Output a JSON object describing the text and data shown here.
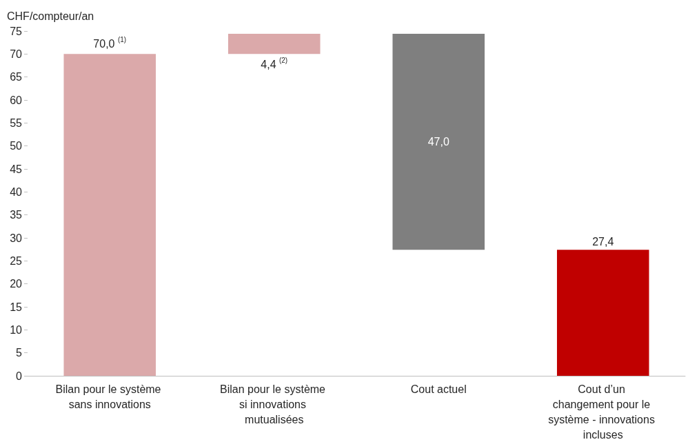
{
  "chart_data": {
    "type": "bar",
    "ylabel": "CHF/compteur/an",
    "categories": [
      "Bilan pour le système sans innovations",
      "Bilan pour le système si innovations mutualisées",
      "Cout actuel",
      "Cout d’un changement pour le système - innovations incluses"
    ],
    "values": [
      70.0,
      4.4,
      47.0,
      27.4
    ],
    "base": [
      0,
      70.0,
      27.4,
      0
    ],
    "colors": [
      "#dba9aa",
      "#dba9aa",
      "#7f7f7f",
      "#c00000"
    ],
    "value_labels": [
      "70,0 $^{(1)}$",
      "4,4 $^{(2)}$",
      "47,0",
      "27,4"
    ],
    "ylim": [
      0,
      75
    ],
    "yticks": [
      0,
      5,
      10,
      15,
      20,
      25,
      30,
      35,
      40,
      45,
      50,
      55,
      60,
      65,
      70,
      75
    ],
    "grid": false
  }
}
